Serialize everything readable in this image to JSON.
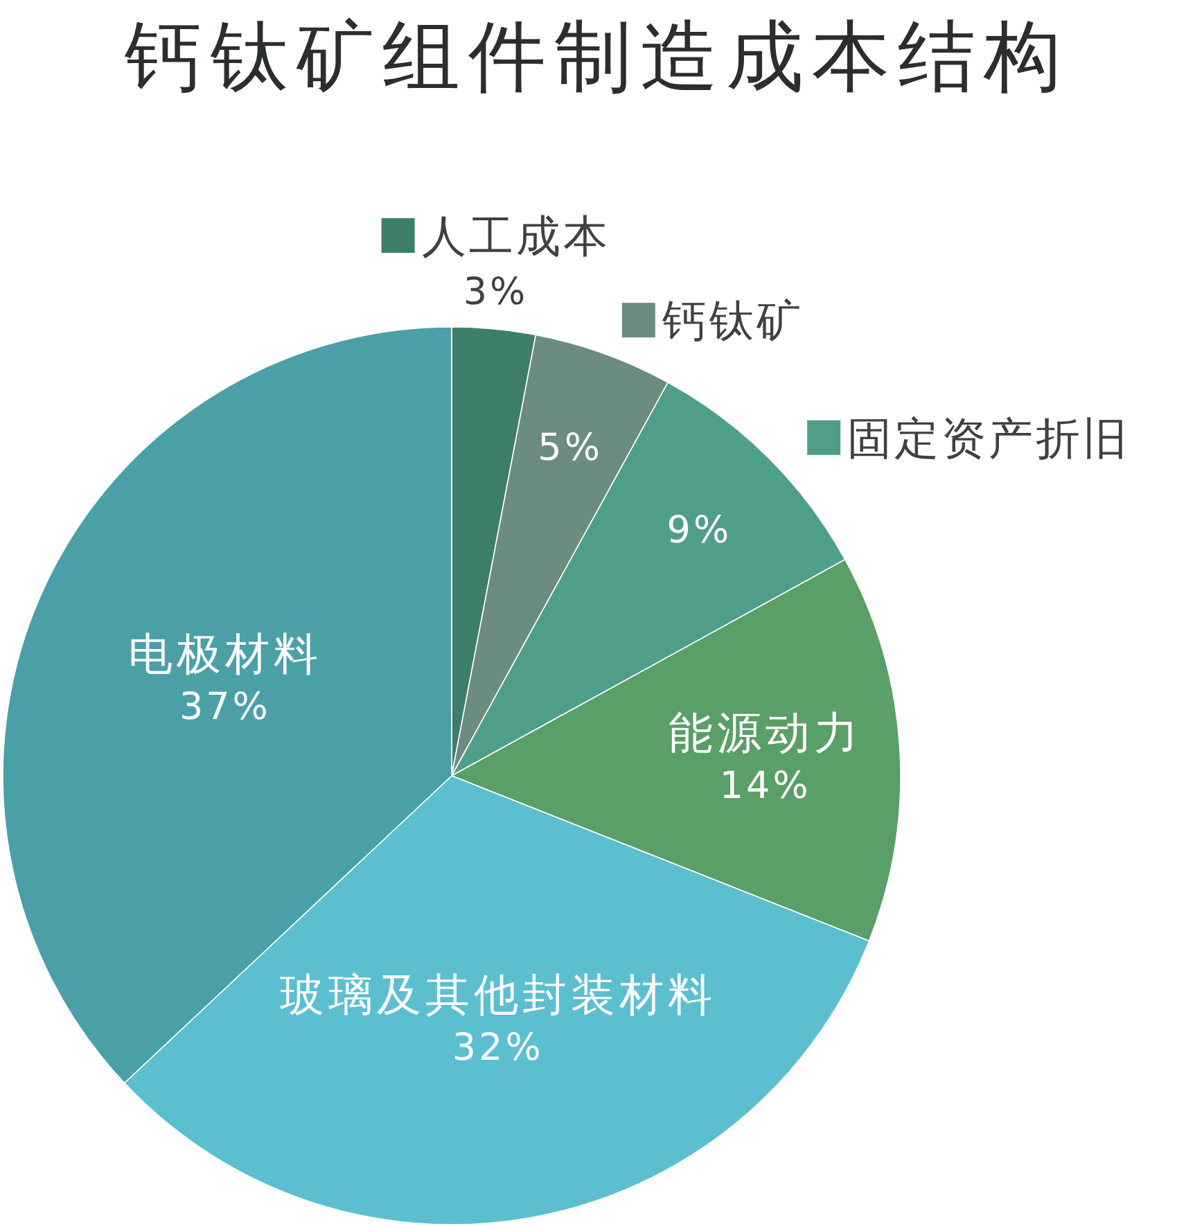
{
  "chart_data": {
    "type": "pie",
    "title": "钙钛矿组件制造成本结构",
    "categories": [
      "人工成本",
      "钙钛矿",
      "固定资产折旧",
      "能源动力",
      "玻璃及其他封装材料",
      "电极材料"
    ],
    "values": [
      3,
      5,
      9,
      14,
      32,
      37
    ],
    "value_labels": [
      "3%",
      "5%",
      "9%",
      "14%",
      "32%",
      "37%"
    ],
    "colors": [
      "#3d7f66",
      "#6b8c7e",
      "#4e9e8a",
      "#5a9e68",
      "#5bbfcf",
      "#4aa0a6"
    ],
    "legend": "top right"
  }
}
